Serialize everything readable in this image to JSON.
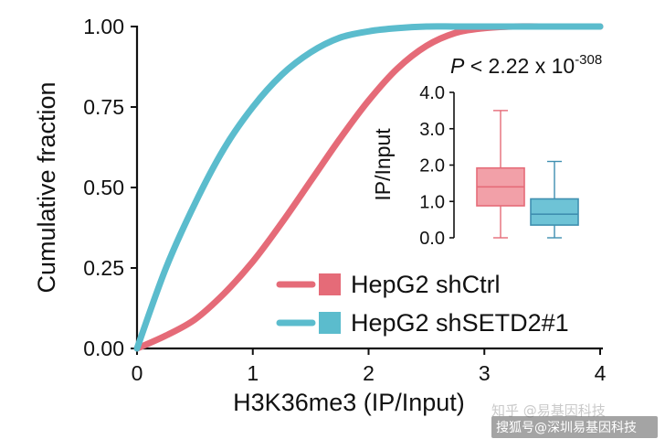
{
  "chart_data": [
    {
      "type": "line",
      "xlabel": "H3K36me3 (IP/Input)",
      "ylabel": "Cumulative fraction",
      "xlim": [
        0,
        4
      ],
      "ylim": [
        0,
        1
      ],
      "x_ticks": [
        "0",
        "1",
        "2",
        "3",
        "4"
      ],
      "y_ticks": [
        "0.00",
        "0.25",
        "0.50",
        "0.75",
        "1.00"
      ],
      "grid": false,
      "legend": "bottom-right",
      "series": [
        {
          "name": "HepG2 shCtrl",
          "color": "#e56b78",
          "x": [
            0,
            0.25,
            0.5,
            0.75,
            1.0,
            1.25,
            1.5,
            1.75,
            2.0,
            2.25,
            2.5,
            2.75,
            3.0,
            3.25,
            3.5,
            4.0
          ],
          "y": [
            0,
            0.04,
            0.09,
            0.17,
            0.27,
            0.39,
            0.52,
            0.65,
            0.77,
            0.87,
            0.94,
            0.98,
            0.995,
            1.0,
            1.0,
            1.0
          ]
        },
        {
          "name": "HepG2 shSETD2#1",
          "color": "#5bbccd",
          "x": [
            0,
            0.25,
            0.5,
            0.75,
            1.0,
            1.25,
            1.5,
            1.75,
            2.0,
            2.25,
            2.5,
            2.75,
            3.0,
            3.5,
            4.0
          ],
          "y": [
            0,
            0.25,
            0.45,
            0.62,
            0.75,
            0.85,
            0.92,
            0.965,
            0.985,
            0.995,
            1.0,
            1.0,
            1.0,
            1.0,
            1.0
          ]
        }
      ],
      "annotation": {
        "p_prefix": "P",
        "p_middle": " < 2.22 x 10",
        "p_exponent": "-308"
      }
    },
    {
      "type": "box",
      "ylabel": "IP/Input",
      "ylim": [
        0,
        4
      ],
      "y_ticks": [
        "0.0",
        "1.0",
        "2.0",
        "3.0",
        "4.0"
      ],
      "series": [
        {
          "name": "HepG2 shCtrl",
          "color": "#e56b78",
          "fill": "#f2a0a8",
          "min": 0.0,
          "q1": 0.88,
          "median": 1.4,
          "q3": 1.92,
          "max": 3.5
        },
        {
          "name": "HepG2 shSETD2#1",
          "color": "#3f8fb0",
          "fill": "#6ec3d6",
          "min": 0.0,
          "q1": 0.35,
          "median": 0.65,
          "q3": 1.07,
          "max": 2.1
        }
      ]
    }
  ],
  "watermarks": {
    "top": "知乎 @易基因科技",
    "bottom": "搜狐号@深圳易基因科技"
  }
}
